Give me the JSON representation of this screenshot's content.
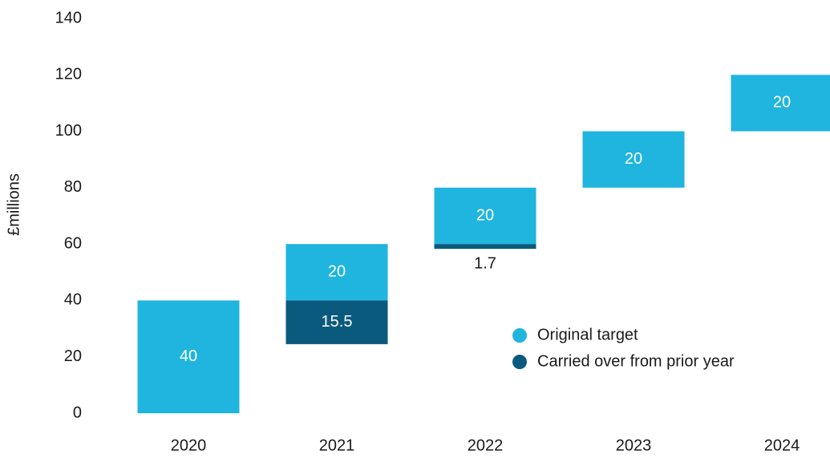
{
  "chart_data": {
    "type": "floating_stacked_bar",
    "y_label": "£millions",
    "categories": [
      "2020",
      "2021",
      "2022",
      "2023",
      "2024"
    ],
    "series": [
      {
        "name": "Original target",
        "color": "#1fb5de",
        "values": [
          40,
          20,
          20,
          20,
          20
        ]
      },
      {
        "name": "Carried over from prior year",
        "color": "#0a5a7e",
        "values": [
          null,
          15.5,
          1.7,
          null,
          null
        ]
      }
    ],
    "ylim": [
      0,
      140
    ],
    "yticks": [
      0,
      20,
      40,
      60,
      80,
      100,
      120,
      140
    ],
    "grid": false,
    "legend": "lower right"
  }
}
